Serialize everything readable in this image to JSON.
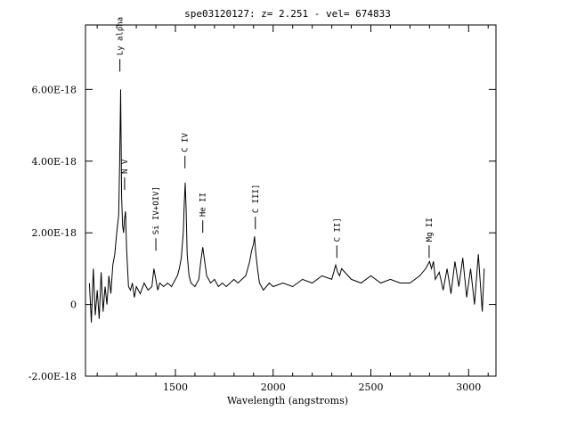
{
  "chart_data": {
    "type": "line",
    "title": "spe03120127: z= 2.251 - vel= 674833",
    "xlabel": "Wavelength (angstroms)",
    "ylabel": "",
    "xlim": [
      1040,
      3140
    ],
    "ylim": [
      -2e-18,
      7.8e-18
    ],
    "x_ticks": [
      1500,
      2000,
      2500,
      3000
    ],
    "x_tick_labels": [
      "1500",
      "2000",
      "2500",
      "3000"
    ],
    "y_ticks": [
      -2e-18,
      0,
      2e-18,
      4e-18,
      6e-18
    ],
    "y_tick_labels": [
      "-2.00E-18",
      "0",
      "2.00E-18",
      "4.00E-18",
      "6.00E-18"
    ],
    "grid": false,
    "series": [
      {
        "x": [
          1060,
          1070,
          1080,
          1090,
          1100,
          1110,
          1120,
          1130,
          1140,
          1150,
          1160,
          1170,
          1180,
          1190,
          1200,
          1210,
          1215,
          1220,
          1225,
          1230,
          1235,
          1240,
          1245,
          1250,
          1260,
          1270,
          1280,
          1290,
          1300,
          1320,
          1340,
          1360,
          1380,
          1390,
          1400,
          1410,
          1420,
          1440,
          1460,
          1480,
          1500,
          1510,
          1520,
          1530,
          1540,
          1545,
          1550,
          1555,
          1560,
          1570,
          1580,
          1600,
          1620,
          1630,
          1640,
          1650,
          1660,
          1680,
          1700,
          1720,
          1740,
          1760,
          1780,
          1800,
          1820,
          1840,
          1860,
          1870,
          1880,
          1890,
          1900,
          1905,
          1910,
          1920,
          1930,
          1950,
          1980,
          2000,
          2050,
          2100,
          2150,
          2200,
          2250,
          2300,
          2320,
          2330,
          2340,
          2350,
          2400,
          2450,
          2500,
          2550,
          2600,
          2650,
          2700,
          2750,
          2780,
          2790,
          2800,
          2810,
          2820,
          2830,
          2850,
          2870,
          2890,
          2910,
          2930,
          2950,
          2970,
          2990,
          3010,
          3030,
          3050,
          3070,
          3080
        ],
        "y": [
          6e-19,
          -5e-19,
          1e-18,
          -3e-19,
          4e-19,
          -4e-19,
          9e-19,
          -2e-19,
          5e-19,
          0.0,
          8e-19,
          3e-19,
          1.1e-18,
          1.4e-18,
          2e-18,
          2.5e-18,
          4e-18,
          6e-18,
          3e-18,
          2.2e-18,
          2e-18,
          2.4e-18,
          2.6e-18,
          1.6e-18,
          5e-19,
          4e-19,
          6e-19,
          2e-19,
          5e-19,
          3e-19,
          6e-19,
          4e-19,
          5e-19,
          1e-18,
          7e-19,
          4e-19,
          6e-19,
          5e-19,
          6e-19,
          5e-19,
          7e-19,
          8e-19,
          1e-18,
          1.3e-18,
          2e-18,
          2.8e-18,
          3.4e-18,
          2.6e-18,
          1.4e-18,
          8e-19,
          6e-19,
          5e-19,
          7e-19,
          1.2e-18,
          1.6e-18,
          1.2e-18,
          8e-19,
          6e-19,
          7e-19,
          5e-19,
          6e-19,
          5e-19,
          6e-19,
          7e-19,
          6e-19,
          7e-19,
          8e-19,
          1e-18,
          1.2e-18,
          1.5e-18,
          1.7e-18,
          1.9e-18,
          1.5e-18,
          1e-18,
          6e-19,
          4e-19,
          6e-19,
          5e-19,
          6e-19,
          5e-19,
          7e-19,
          6e-19,
          8e-19,
          7e-19,
          1.1e-18,
          9e-19,
          8e-19,
          1e-18,
          7e-19,
          6e-19,
          8e-19,
          6e-19,
          7e-19,
          6e-19,
          6e-19,
          8e-19,
          1e-18,
          1.1e-18,
          1.2e-18,
          1e-18,
          1.2e-18,
          7e-19,
          9e-19,
          4e-19,
          1e-18,
          3e-19,
          1.2e-18,
          5e-19,
          1.3e-18,
          2e-19,
          1e-18,
          0.0,
          1.4e-18,
          -2e-19,
          1e-18
        ]
      }
    ],
    "line_labels": [
      {
        "text": "Ly alpha",
        "x": 1216,
        "y": 6.5e-18
      },
      {
        "text": "N V",
        "x": 1240,
        "y": 3.2e-18
      },
      {
        "text": "Si IV+OIV]",
        "x": 1400,
        "y": 1.5e-18
      },
      {
        "text": "C IV",
        "x": 1549,
        "y": 3.8e-18
      },
      {
        "text": "He II",
        "x": 1640,
        "y": 2e-18
      },
      {
        "text": "C III]",
        "x": 1909,
        "y": 2.1e-18
      },
      {
        "text": "C II]",
        "x": 2326,
        "y": 1.3e-18
      },
      {
        "text": "Mg II",
        "x": 2798,
        "y": 1.3e-18
      }
    ]
  }
}
